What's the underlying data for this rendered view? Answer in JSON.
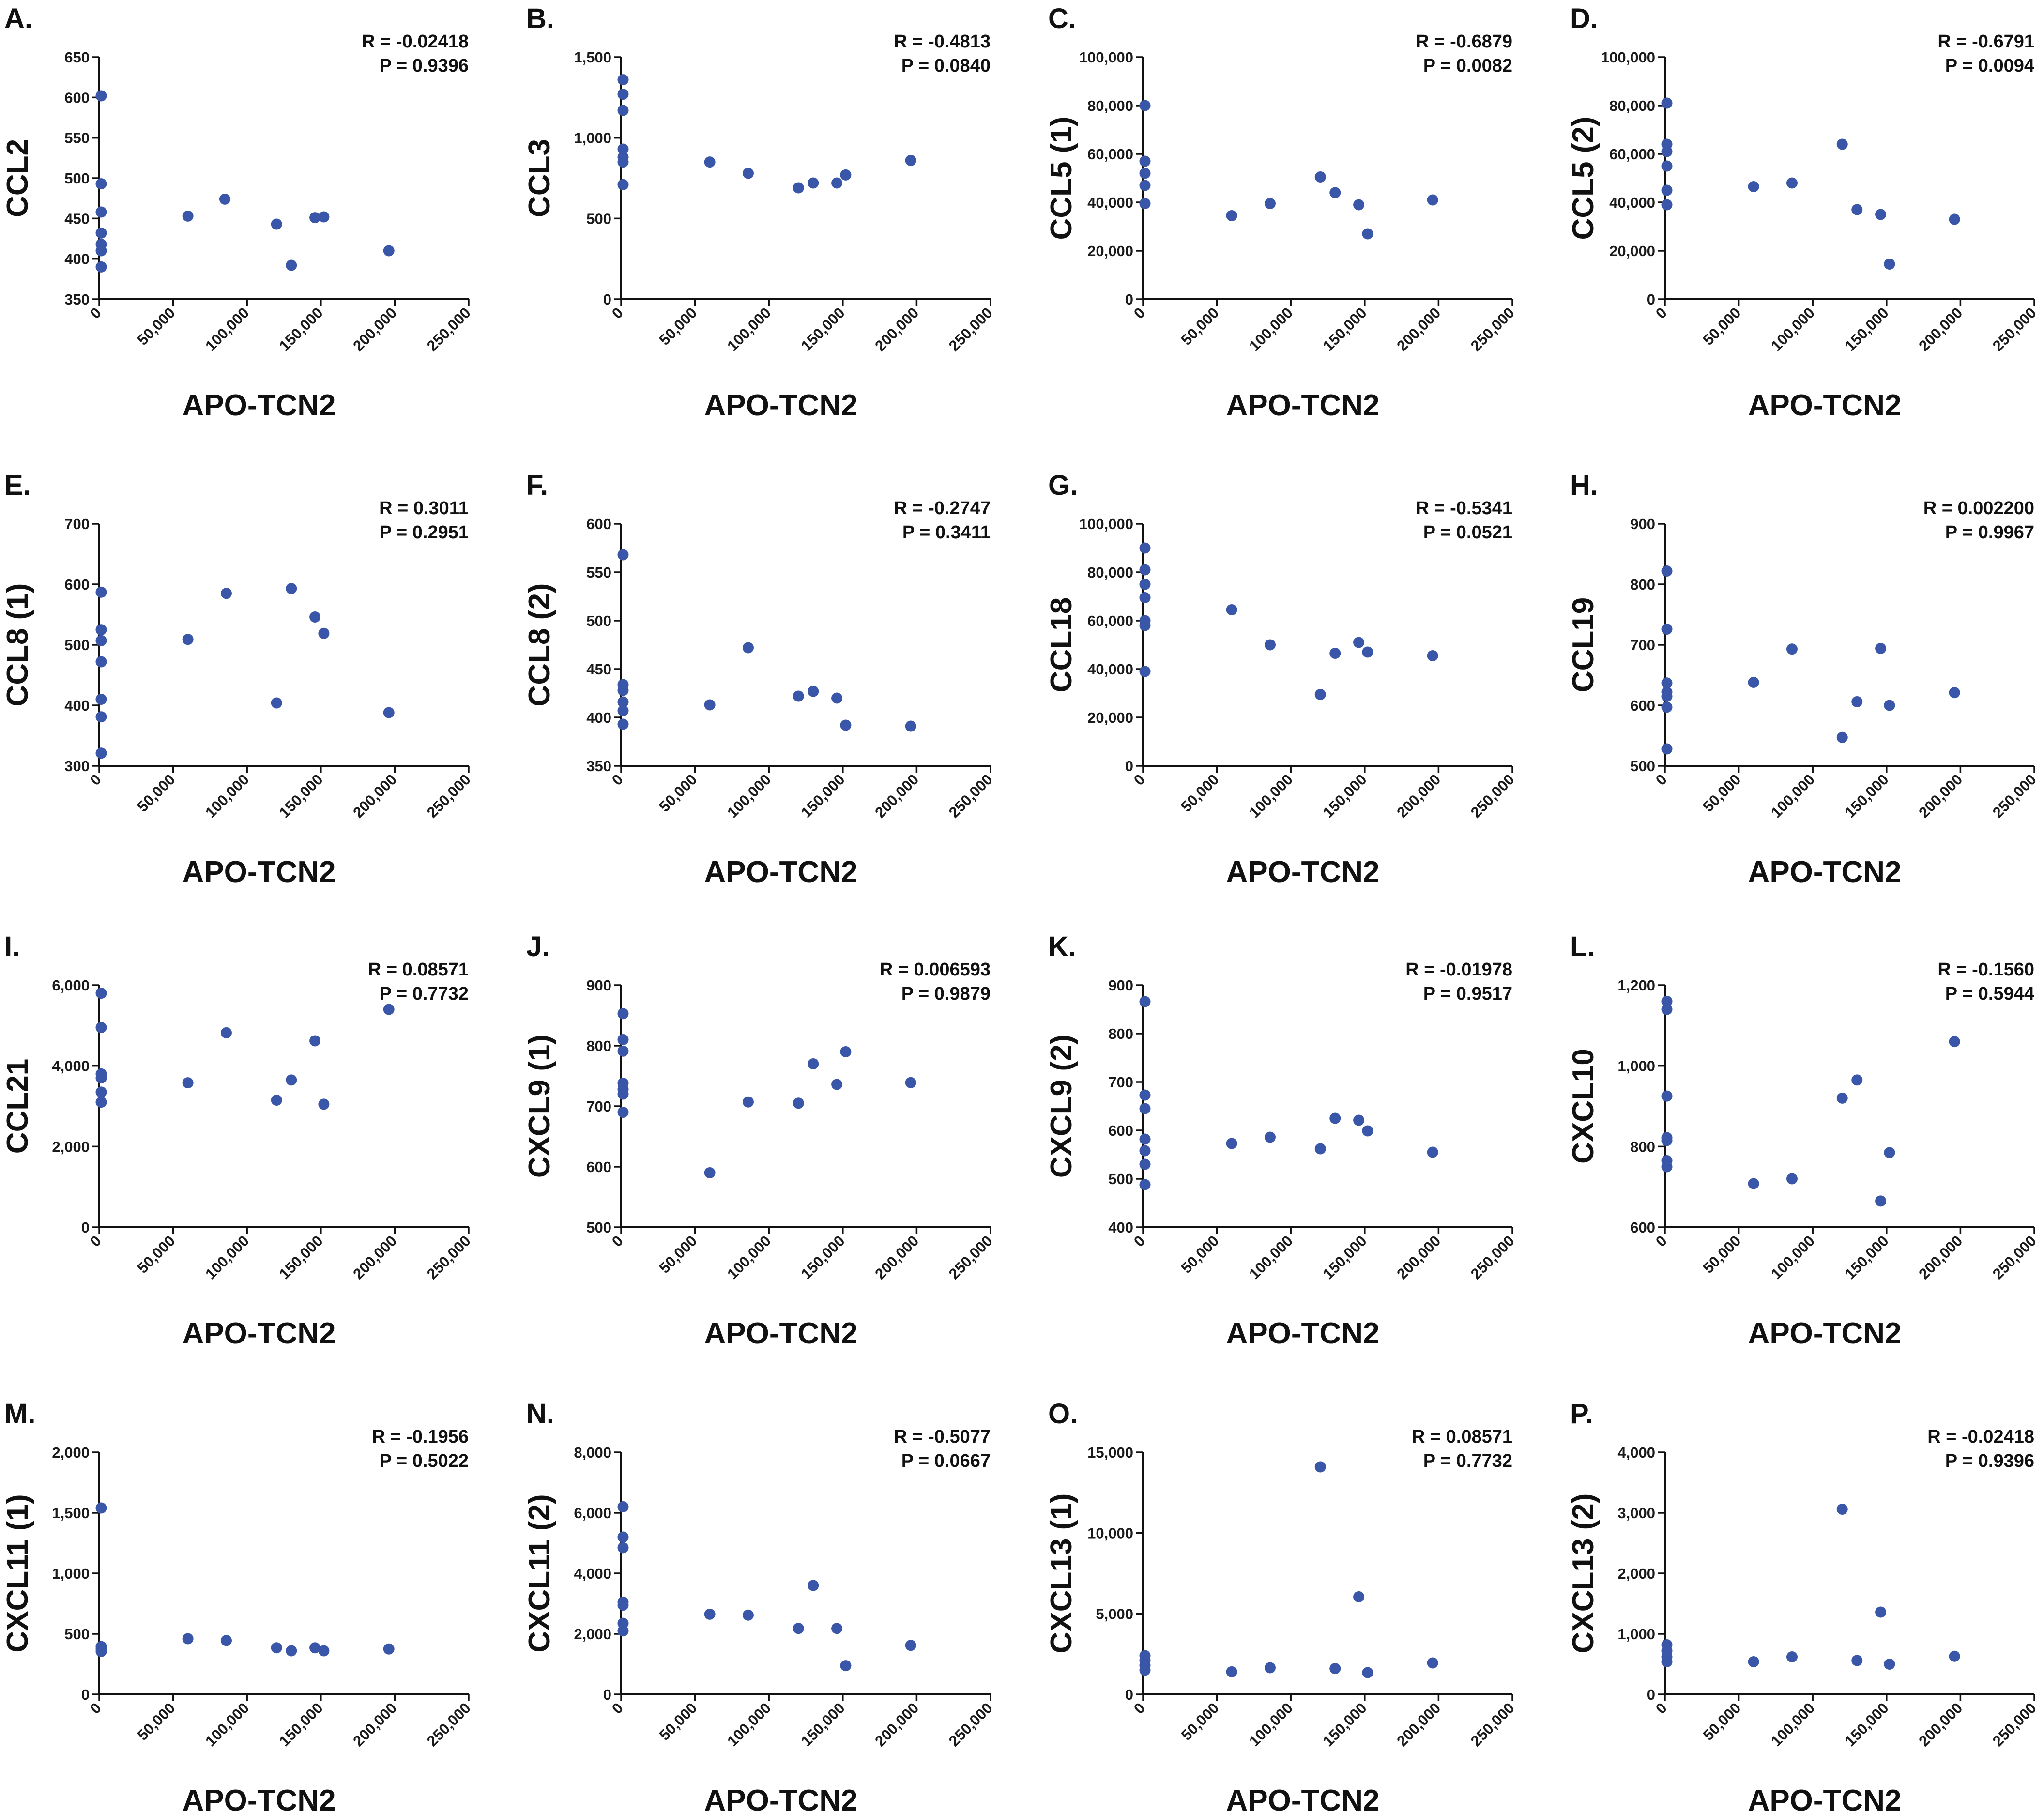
{
  "colors": {
    "point": "#3a56a8",
    "axis": "#111111",
    "text": "#111111"
  },
  "x_axis": {
    "label": "APO-TCN2",
    "range": [
      0,
      250000
    ],
    "ticks": [
      0,
      50000,
      100000,
      150000,
      200000,
      250000
    ],
    "tick_labels": [
      "0",
      "50,000",
      "100,000",
      "150,000",
      "200,000",
      "250,000"
    ]
  },
  "chart_data": [
    {
      "id": "A",
      "letter": "A.",
      "type": "scatter",
      "ylabel": "CCL2",
      "xlabel": "APO-TCN2",
      "stat_r": "R = -0.02418",
      "stat_p": "P = 0.9396",
      "ylim": [
        350,
        650
      ],
      "yticks": [
        350,
        400,
        450,
        500,
        550,
        600,
        650
      ],
      "ytick_labels": [
        "350",
        "400",
        "450",
        "500",
        "550",
        "600",
        "650"
      ],
      "points": [
        [
          0,
          602
        ],
        [
          0,
          493
        ],
        [
          0,
          458
        ],
        [
          0,
          432
        ],
        [
          0,
          418
        ],
        [
          0,
          410
        ],
        [
          0,
          390
        ],
        [
          60000,
          453
        ],
        [
          85000,
          474
        ],
        [
          120000,
          443
        ],
        [
          130000,
          392
        ],
        [
          146000,
          451
        ],
        [
          152000,
          452
        ],
        [
          196000,
          410
        ]
      ]
    },
    {
      "id": "B",
      "letter": "B.",
      "type": "scatter",
      "ylabel": "CCL3",
      "xlabel": "APO-TCN2",
      "stat_r": "R = -0.4813",
      "stat_p": "P = 0.0840",
      "ylim": [
        0,
        1500
      ],
      "yticks": [
        0,
        500,
        1000,
        1500
      ],
      "ytick_labels": [
        "0",
        "500",
        "1,000",
        "1,500"
      ],
      "points": [
        [
          0,
          1360
        ],
        [
          0,
          1270
        ],
        [
          0,
          1170
        ],
        [
          0,
          930
        ],
        [
          0,
          880
        ],
        [
          0,
          850
        ],
        [
          0,
          710
        ],
        [
          60000,
          850
        ],
        [
          86000,
          780
        ],
        [
          120000,
          690
        ],
        [
          130000,
          720
        ],
        [
          146000,
          720
        ],
        [
          152000,
          770
        ],
        [
          196000,
          860
        ]
      ]
    },
    {
      "id": "C",
      "letter": "C.",
      "type": "scatter",
      "ylabel": "CCL5 (1)",
      "xlabel": "APO-TCN2",
      "stat_r": "R = -0.6879",
      "stat_p": "P = 0.0082",
      "ylim": [
        0,
        100000
      ],
      "yticks": [
        0,
        20000,
        40000,
        60000,
        80000,
        100000
      ],
      "ytick_labels": [
        "0",
        "20,000",
        "40,000",
        "60,000",
        "80,000",
        "100,000"
      ],
      "points": [
        [
          0,
          80000
        ],
        [
          0,
          57000
        ],
        [
          0,
          52000
        ],
        [
          0,
          47000
        ],
        [
          0,
          39500
        ],
        [
          60000,
          34500
        ],
        [
          86000,
          39500
        ],
        [
          120000,
          50500
        ],
        [
          130000,
          44000
        ],
        [
          146000,
          39000
        ],
        [
          152000,
          27000
        ],
        [
          196000,
          41000
        ]
      ]
    },
    {
      "id": "D",
      "letter": "D.",
      "type": "scatter",
      "ylabel": "CCL5 (2)",
      "xlabel": "APO-TCN2",
      "stat_r": "R = -0.6791",
      "stat_p": "P = 0.0094",
      "ylim": [
        0,
        100000
      ],
      "yticks": [
        0,
        20000,
        40000,
        60000,
        80000,
        100000
      ],
      "ytick_labels": [
        "0",
        "20,000",
        "40,000",
        "60,000",
        "80,000",
        "100,000"
      ],
      "points": [
        [
          0,
          81000
        ],
        [
          0,
          64000
        ],
        [
          0,
          61000
        ],
        [
          0,
          55000
        ],
        [
          0,
          45000
        ],
        [
          0,
          39000
        ],
        [
          60000,
          46500
        ],
        [
          86000,
          48000
        ],
        [
          120000,
          64000
        ],
        [
          130000,
          37000
        ],
        [
          146000,
          35000
        ],
        [
          152000,
          14500
        ],
        [
          196000,
          33000
        ]
      ]
    },
    {
      "id": "E",
      "letter": "E.",
      "type": "scatter",
      "ylabel": "CCL8 (1)",
      "xlabel": "APO-TCN2",
      "stat_r": "R = 0.3011",
      "stat_p": "P = 0.2951",
      "ylim": [
        300,
        700
      ],
      "yticks": [
        300,
        400,
        500,
        600,
        700
      ],
      "ytick_labels": [
        "300",
        "400",
        "500",
        "600",
        "700"
      ],
      "points": [
        [
          0,
          587
        ],
        [
          0,
          525
        ],
        [
          0,
          507
        ],
        [
          0,
          472
        ],
        [
          0,
          410
        ],
        [
          0,
          381
        ],
        [
          0,
          321
        ],
        [
          60000,
          509
        ],
        [
          86000,
          585
        ],
        [
          120000,
          404
        ],
        [
          130000,
          593
        ],
        [
          146000,
          546
        ],
        [
          152000,
          519
        ],
        [
          196000,
          388
        ]
      ]
    },
    {
      "id": "F",
      "letter": "F.",
      "type": "scatter",
      "ylabel": "CCL8 (2)",
      "xlabel": "APO-TCN2",
      "stat_r": "R = -0.2747",
      "stat_p": "P = 0.3411",
      "ylim": [
        350,
        600
      ],
      "yticks": [
        350,
        400,
        450,
        500,
        550,
        600
      ],
      "ytick_labels": [
        "350",
        "400",
        "450",
        "500",
        "550",
        "600"
      ],
      "points": [
        [
          0,
          568
        ],
        [
          0,
          434
        ],
        [
          0,
          428
        ],
        [
          0,
          416
        ],
        [
          0,
          407
        ],
        [
          0,
          393
        ],
        [
          60000,
          413
        ],
        [
          86000,
          472
        ],
        [
          120000,
          422
        ],
        [
          130000,
          427
        ],
        [
          146000,
          420
        ],
        [
          152000,
          392
        ],
        [
          196000,
          391
        ]
      ]
    },
    {
      "id": "G",
      "letter": "G.",
      "type": "scatter",
      "ylabel": "CCL18",
      "xlabel": "APO-TCN2",
      "stat_r": "R = -0.5341",
      "stat_p": "P = 0.0521",
      "ylim": [
        0,
        100000
      ],
      "yticks": [
        0,
        20000,
        40000,
        60000,
        80000,
        100000
      ],
      "ytick_labels": [
        "0",
        "20,000",
        "40,000",
        "60,000",
        "80,000",
        "100,000"
      ],
      "points": [
        [
          0,
          90000
        ],
        [
          0,
          81000
        ],
        [
          0,
          75000
        ],
        [
          0,
          69500
        ],
        [
          0,
          60000
        ],
        [
          0,
          58000
        ],
        [
          0,
          39000
        ],
        [
          60000,
          64500
        ],
        [
          86000,
          50000
        ],
        [
          120000,
          29500
        ],
        [
          130000,
          46500
        ],
        [
          146000,
          51000
        ],
        [
          152000,
          47000
        ],
        [
          196000,
          45500
        ]
      ]
    },
    {
      "id": "H",
      "letter": "H.",
      "type": "scatter",
      "ylabel": "CCL19",
      "xlabel": "APO-TCN2",
      "stat_r": "R = 0.002200",
      "stat_p": "P = 0.9967",
      "ylim": [
        500,
        900
      ],
      "yticks": [
        500,
        600,
        700,
        800,
        900
      ],
      "ytick_labels": [
        "500",
        "600",
        "700",
        "800",
        "900"
      ],
      "points": [
        [
          0,
          822
        ],
        [
          0,
          726
        ],
        [
          0,
          637
        ],
        [
          0,
          622
        ],
        [
          0,
          615
        ],
        [
          0,
          597
        ],
        [
          0,
          528
        ],
        [
          60000,
          638
        ],
        [
          86000,
          693
        ],
        [
          120000,
          547
        ],
        [
          130000,
          606
        ],
        [
          146000,
          694
        ],
        [
          152000,
          600
        ],
        [
          196000,
          621
        ]
      ]
    },
    {
      "id": "I",
      "letter": "I.",
      "type": "scatter",
      "ylabel": "CCL21",
      "xlabel": "APO-TCN2",
      "stat_r": "R = 0.08571",
      "stat_p": "P = 0.7732",
      "ylim": [
        0,
        6000
      ],
      "yticks": [
        0,
        2000,
        4000,
        6000
      ],
      "ytick_labels": [
        "0",
        "2,000",
        "4,000",
        "6,000"
      ],
      "points": [
        [
          0,
          5800
        ],
        [
          0,
          4950
        ],
        [
          0,
          3800
        ],
        [
          0,
          3700
        ],
        [
          0,
          3350
        ],
        [
          0,
          3100
        ],
        [
          60000,
          3580
        ],
        [
          86000,
          4820
        ],
        [
          120000,
          3150
        ],
        [
          130000,
          3650
        ],
        [
          146000,
          4620
        ],
        [
          152000,
          3050
        ],
        [
          196000,
          5400
        ]
      ]
    },
    {
      "id": "J",
      "letter": "J.",
      "type": "scatter",
      "ylabel": "CXCL9 (1)",
      "xlabel": "APO-TCN2",
      "stat_r": "R = 0.006593",
      "stat_p": "P = 0.9879",
      "ylim": [
        500,
        900
      ],
      "yticks": [
        500,
        600,
        700,
        800,
        900
      ],
      "ytick_labels": [
        "500",
        "600",
        "700",
        "800",
        "900"
      ],
      "points": [
        [
          0,
          853
        ],
        [
          0,
          810
        ],
        [
          0,
          791
        ],
        [
          0,
          738
        ],
        [
          0,
          728
        ],
        [
          0,
          720
        ],
        [
          0,
          690
        ],
        [
          60000,
          590
        ],
        [
          86000,
          707
        ],
        [
          120000,
          705
        ],
        [
          130000,
          770
        ],
        [
          146000,
          736
        ],
        [
          152000,
          790
        ],
        [
          196000,
          739
        ]
      ]
    },
    {
      "id": "K",
      "letter": "K.",
      "type": "scatter",
      "ylabel": "CXCL9 (2)",
      "xlabel": "APO-TCN2",
      "stat_r": "R = -0.01978",
      "stat_p": "P = 0.9517",
      "ylim": [
        400,
        900
      ],
      "yticks": [
        400,
        500,
        600,
        700,
        800,
        900
      ],
      "ytick_labels": [
        "400",
        "500",
        "600",
        "700",
        "800",
        "900"
      ],
      "points": [
        [
          0,
          866
        ],
        [
          0,
          673
        ],
        [
          0,
          645
        ],
        [
          0,
          582
        ],
        [
          0,
          558
        ],
        [
          0,
          530
        ],
        [
          0,
          488
        ],
        [
          60000,
          573
        ],
        [
          86000,
          586
        ],
        [
          120000,
          562
        ],
        [
          130000,
          625
        ],
        [
          146000,
          621
        ],
        [
          152000,
          599
        ],
        [
          196000,
          555
        ]
      ]
    },
    {
      "id": "L",
      "letter": "L.",
      "type": "scatter",
      "ylabel": "CXCL10",
      "xlabel": "APO-TCN2",
      "stat_r": "R = -0.1560",
      "stat_p": "P = 0.5944",
      "ylim": [
        600,
        1200
      ],
      "yticks": [
        600,
        800,
        1000,
        1200
      ],
      "ytick_labels": [
        "600",
        "800",
        "1,000",
        "1,200"
      ],
      "points": [
        [
          0,
          1160
        ],
        [
          0,
          1140
        ],
        [
          0,
          925
        ],
        [
          0,
          822
        ],
        [
          0,
          815
        ],
        [
          0,
          765
        ],
        [
          0,
          750
        ],
        [
          60000,
          708
        ],
        [
          86000,
          720
        ],
        [
          120000,
          920
        ],
        [
          130000,
          965
        ],
        [
          146000,
          665
        ],
        [
          152000,
          785
        ],
        [
          196000,
          1060
        ]
      ]
    },
    {
      "id": "M",
      "letter": "M.",
      "type": "scatter",
      "ylabel": "CXCL11 (1)",
      "xlabel": "APO-TCN2",
      "stat_r": "R = -0.1956",
      "stat_p": "P = 0.5022",
      "ylim": [
        0,
        2000
      ],
      "yticks": [
        0,
        500,
        1000,
        1500,
        2000
      ],
      "ytick_labels": [
        "0",
        "500",
        "1,000",
        "1,500",
        "2,000"
      ],
      "points": [
        [
          0,
          1540
        ],
        [
          0,
          395
        ],
        [
          0,
          375
        ],
        [
          0,
          355
        ],
        [
          60000,
          460
        ],
        [
          86000,
          445
        ],
        [
          120000,
          385
        ],
        [
          130000,
          360
        ],
        [
          146000,
          385
        ],
        [
          152000,
          360
        ],
        [
          196000,
          375
        ]
      ]
    },
    {
      "id": "N",
      "letter": "N.",
      "type": "scatter",
      "ylabel": "CXCL11 (2)",
      "xlabel": "APO-TCN2",
      "stat_r": "R = -0.5077",
      "stat_p": "P = 0.0667",
      "ylim": [
        0,
        8000
      ],
      "yticks": [
        0,
        2000,
        4000,
        6000,
        8000
      ],
      "ytick_labels": [
        "0",
        "2,000",
        "4,000",
        "6,000",
        "8,000"
      ],
      "points": [
        [
          0,
          6200
        ],
        [
          0,
          5200
        ],
        [
          0,
          4850
        ],
        [
          0,
          3050
        ],
        [
          0,
          2950
        ],
        [
          0,
          2350
        ],
        [
          0,
          2100
        ],
        [
          60000,
          2650
        ],
        [
          86000,
          2620
        ],
        [
          120000,
          2180
        ],
        [
          130000,
          3600
        ],
        [
          146000,
          2180
        ],
        [
          152000,
          950
        ],
        [
          196000,
          1620
        ]
      ]
    },
    {
      "id": "O",
      "letter": "O.",
      "type": "scatter",
      "ylabel": "CXCL13 (1)",
      "xlabel": "APO-TCN2",
      "stat_r": "R = 0.08571",
      "stat_p": "P = 0.7732",
      "ylim": [
        0,
        15000
      ],
      "yticks": [
        0,
        5000,
        10000,
        15000
      ],
      "ytick_labels": [
        "0",
        "5,000",
        "10,000",
        "15,000"
      ],
      "points": [
        [
          0,
          2400
        ],
        [
          0,
          2100
        ],
        [
          0,
          1800
        ],
        [
          0,
          1500
        ],
        [
          60000,
          1400
        ],
        [
          86000,
          1650
        ],
        [
          120000,
          14100
        ],
        [
          130000,
          1600
        ],
        [
          146000,
          6050
        ],
        [
          152000,
          1350
        ],
        [
          196000,
          1950
        ]
      ]
    },
    {
      "id": "P",
      "letter": "P.",
      "type": "scatter",
      "ylabel": "CXCL13 (2)",
      "xlabel": "APO-TCN2",
      "stat_r": "R = -0.02418",
      "stat_p": "P = 0.9396",
      "ylim": [
        0,
        4000
      ],
      "yticks": [
        0,
        1000,
        2000,
        3000,
        4000
      ],
      "ytick_labels": [
        "0",
        "1,000",
        "2,000",
        "3,000",
        "4,000"
      ],
      "points": [
        [
          0,
          820
        ],
        [
          0,
          720
        ],
        [
          0,
          620
        ],
        [
          0,
          540
        ],
        [
          60000,
          540
        ],
        [
          86000,
          620
        ],
        [
          120000,
          3060
        ],
        [
          130000,
          560
        ],
        [
          146000,
          1360
        ],
        [
          152000,
          500
        ],
        [
          196000,
          630
        ]
      ]
    }
  ]
}
